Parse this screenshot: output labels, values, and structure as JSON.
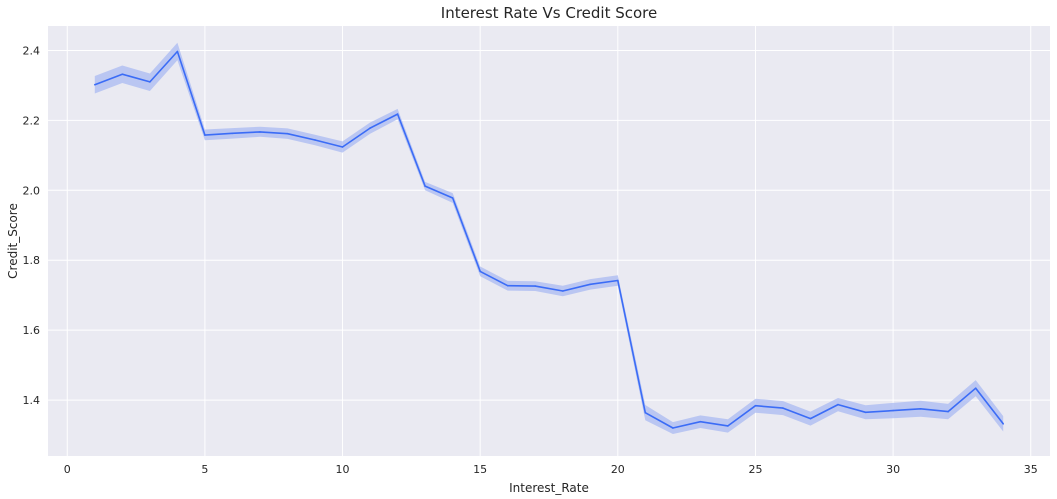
{
  "chart_data": {
    "type": "line",
    "title": "Interest Rate Vs Credit Score",
    "xlabel": "Interest_Rate",
    "ylabel": "Credit_Score",
    "xlim": [
      -0.7,
      35.7
    ],
    "ylim": [
      1.24,
      2.47
    ],
    "xticks": [
      0,
      5,
      10,
      15,
      20,
      25,
      30,
      35
    ],
    "yticks": [
      1.4,
      1.6,
      1.8,
      2.0,
      2.2,
      2.4
    ],
    "ytick_labels": [
      "1.4",
      "1.6",
      "1.8",
      "2.0",
      "2.2",
      "2.4"
    ],
    "grid": true,
    "legend": "none",
    "colors": {
      "line": "#3b6cf6",
      "band": "#a9b9f2",
      "plot_bg": "#eaeaf2",
      "grid": "#ffffff"
    },
    "series": [
      {
        "x": [
          1,
          2,
          3,
          4,
          5,
          6,
          7,
          8,
          9,
          10,
          11,
          12,
          13,
          14,
          15,
          16,
          17,
          18,
          19,
          20,
          21,
          22,
          23,
          24,
          25,
          26,
          27,
          28,
          29,
          30,
          31,
          32,
          33,
          34
        ],
        "values": [
          2.302,
          2.332,
          2.31,
          2.397,
          2.158,
          2.163,
          2.167,
          2.162,
          2.144,
          2.124,
          2.178,
          2.218,
          2.012,
          1.978,
          1.768,
          1.727,
          1.726,
          1.712,
          1.731,
          1.742,
          1.364,
          1.32,
          1.338,
          1.326,
          1.384,
          1.377,
          1.347,
          1.387,
          1.365,
          1.37,
          1.375,
          1.367,
          1.434,
          1.332
        ],
        "ci_lower": [
          2.277,
          2.307,
          2.284,
          2.372,
          2.143,
          2.148,
          2.153,
          2.147,
          2.129,
          2.108,
          2.162,
          2.203,
          2.0,
          1.964,
          1.754,
          1.713,
          1.712,
          1.697,
          1.716,
          1.727,
          1.342,
          1.303,
          1.32,
          1.307,
          1.364,
          1.357,
          1.327,
          1.368,
          1.345,
          1.348,
          1.352,
          1.345,
          1.411,
          1.31
        ],
        "ci_upper": [
          2.327,
          2.357,
          2.334,
          2.422,
          2.174,
          2.178,
          2.182,
          2.177,
          2.159,
          2.14,
          2.194,
          2.233,
          2.024,
          1.992,
          1.782,
          1.741,
          1.74,
          1.727,
          1.746,
          1.757,
          1.386,
          1.337,
          1.356,
          1.345,
          1.404,
          1.397,
          1.367,
          1.406,
          1.385,
          1.392,
          1.398,
          1.389,
          1.457,
          1.354
        ]
      }
    ]
  }
}
